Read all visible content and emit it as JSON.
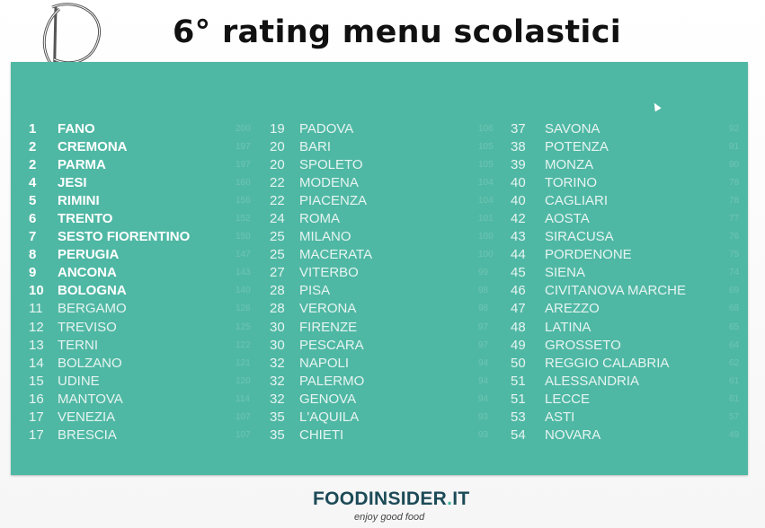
{
  "title": "6° rating menu scolastici",
  "brand": {
    "name": "FOODINSIDER",
    "dot": ".",
    "tld": "IT",
    "tagline": "enjoy good food"
  },
  "colors": {
    "panel": "#4fb8a4",
    "brand": "#1c4a57",
    "accent": "#3fb39c"
  },
  "icons": {
    "logo": "monogram-logo-icon",
    "cursor": "mouse-cursor-icon"
  },
  "columns": [
    [
      {
        "rank": "1",
        "city": "FANO",
        "score": "200",
        "bold": true
      },
      {
        "rank": "2",
        "city": "CREMONA",
        "score": "197",
        "bold": true
      },
      {
        "rank": "2",
        "city": "PARMA",
        "score": "197",
        "bold": true
      },
      {
        "rank": "4",
        "city": "JESI",
        "score": "160",
        "bold": true
      },
      {
        "rank": "5",
        "city": "RIMINI",
        "score": "156",
        "bold": true
      },
      {
        "rank": "6",
        "city": "TRENTO",
        "score": "152",
        "bold": true
      },
      {
        "rank": "7",
        "city": "SESTO FIORENTINO",
        "score": "150",
        "bold": true
      },
      {
        "rank": "8",
        "city": "PERUGIA",
        "score": "147",
        "bold": true
      },
      {
        "rank": "9",
        "city": "ANCONA",
        "score": "143",
        "bold": true
      },
      {
        "rank": "10",
        "city": "BOLOGNA",
        "score": "140",
        "bold": true
      },
      {
        "rank": "11",
        "city": "BERGAMO",
        "score": "126",
        "bold": false
      },
      {
        "rank": "12",
        "city": "TREVISO",
        "score": "125",
        "bold": false
      },
      {
        "rank": "13",
        "city": "TERNI",
        "score": "122",
        "bold": false
      },
      {
        "rank": "14",
        "city": "BOLZANO",
        "score": "121",
        "bold": false
      },
      {
        "rank": "15",
        "city": "UDINE",
        "score": "120",
        "bold": false
      },
      {
        "rank": "16",
        "city": "MANTOVA",
        "score": "114",
        "bold": false
      },
      {
        "rank": "17",
        "city": "VENEZIA",
        "score": "107",
        "bold": false
      },
      {
        "rank": "17",
        "city": "BRESCIA",
        "score": "107",
        "bold": false
      }
    ],
    [
      {
        "rank": "19",
        "city": "PADOVA",
        "score": "106",
        "bold": false
      },
      {
        "rank": "20",
        "city": "BARI",
        "score": "105",
        "bold": false
      },
      {
        "rank": "20",
        "city": "SPOLETO",
        "score": "105",
        "bold": false
      },
      {
        "rank": "22",
        "city": "MODENA",
        "score": "104",
        "bold": false
      },
      {
        "rank": "22",
        "city": "PIACENZA",
        "score": "104",
        "bold": false
      },
      {
        "rank": "24",
        "city": "ROMA",
        "score": "101",
        "bold": false
      },
      {
        "rank": "25",
        "city": "MILANO",
        "score": "100",
        "bold": false
      },
      {
        "rank": "25",
        "city": "MACERATA",
        "score": "100",
        "bold": false
      },
      {
        "rank": "27",
        "city": "VITERBO",
        "score": "99",
        "bold": false
      },
      {
        "rank": "28",
        "city": "PISA",
        "score": "98",
        "bold": false
      },
      {
        "rank": "28",
        "city": "VERONA",
        "score": "98",
        "bold": false
      },
      {
        "rank": "30",
        "city": "FIRENZE",
        "score": "97",
        "bold": false
      },
      {
        "rank": "30",
        "city": "PESCARA",
        "score": "97",
        "bold": false
      },
      {
        "rank": "32",
        "city": "NAPOLI",
        "score": "94",
        "bold": false
      },
      {
        "rank": "32",
        "city": "PALERMO",
        "score": "94",
        "bold": false
      },
      {
        "rank": "32",
        "city": "GENOVA",
        "score": "94",
        "bold": false
      },
      {
        "rank": "35",
        "city": "L'AQUILA",
        "score": "93",
        "bold": false
      },
      {
        "rank": "35",
        "city": "CHIETI",
        "score": "93",
        "bold": false
      }
    ],
    [
      {
        "rank": "37",
        "city": "SAVONA",
        "score": "92",
        "bold": false
      },
      {
        "rank": "38",
        "city": "POTENZA",
        "score": "91",
        "bold": false
      },
      {
        "rank": "39",
        "city": "MONZA",
        "score": "90",
        "bold": false
      },
      {
        "rank": "40",
        "city": "TORINO",
        "score": "78",
        "bold": false
      },
      {
        "rank": "40",
        "city": "CAGLIARI",
        "score": "78",
        "bold": false
      },
      {
        "rank": "42",
        "city": "AOSTA",
        "score": "77",
        "bold": false
      },
      {
        "rank": "43",
        "city": "SIRACUSA",
        "score": "76",
        "bold": false
      },
      {
        "rank": "44",
        "city": "PORDENONE",
        "score": "75",
        "bold": false
      },
      {
        "rank": "45",
        "city": "SIENA",
        "score": "74",
        "bold": false
      },
      {
        "rank": "46",
        "city": "CIVITANOVA MARCHE",
        "score": "69",
        "bold": false
      },
      {
        "rank": "47",
        "city": "AREZZO",
        "score": "68",
        "bold": false
      },
      {
        "rank": "48",
        "city": "LATINA",
        "score": "65",
        "bold": false
      },
      {
        "rank": "49",
        "city": "GROSSETO",
        "score": "64",
        "bold": false
      },
      {
        "rank": "50",
        "city": "REGGIO CALABRIA",
        "score": "62",
        "bold": false
      },
      {
        "rank": "51",
        "city": "ALESSANDRIA",
        "score": "61",
        "bold": false
      },
      {
        "rank": "51",
        "city": "LECCE",
        "score": "61",
        "bold": false
      },
      {
        "rank": "53",
        "city": "ASTI",
        "score": "57",
        "bold": false
      },
      {
        "rank": "54",
        "city": "NOVARA",
        "score": "49",
        "bold": false
      }
    ]
  ]
}
